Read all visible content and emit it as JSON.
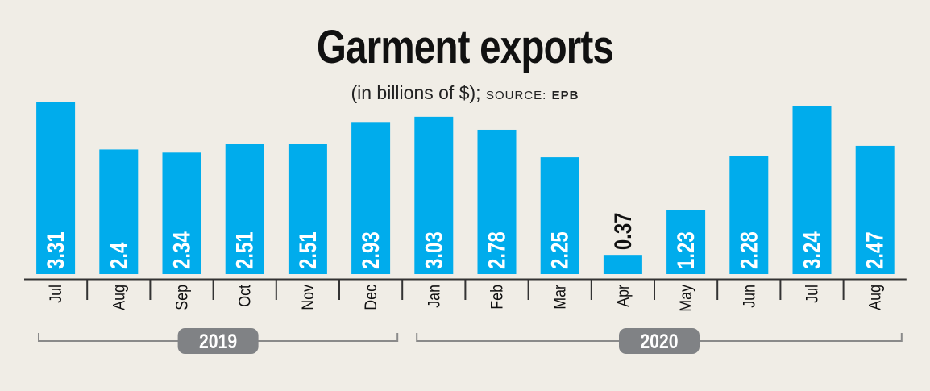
{
  "title": "Garment exports",
  "subtitle": {
    "text": "(in billions of $);",
    "source_label": "SOURCE:",
    "source_name": "EPB"
  },
  "colors": {
    "bar": "#00acec",
    "background": "#f0ede6",
    "axis": "#333333",
    "badge": "#808285",
    "bracket": "#8a8a8a"
  },
  "chart_data": {
    "type": "bar",
    "title": "Garment exports",
    "subtitle": "(in billions of $); SOURCE: EPB",
    "categories": [
      "Jul",
      "Aug",
      "Sep",
      "Oct",
      "Nov",
      "Dec",
      "Jan",
      "Feb",
      "Mar",
      "Apr",
      "May",
      "Jun",
      "Jul",
      "Aug"
    ],
    "values": [
      3.31,
      2.4,
      2.34,
      2.51,
      2.51,
      2.93,
      3.03,
      2.78,
      2.25,
      0.37,
      1.23,
      2.28,
      3.24,
      2.47
    ],
    "data_labels": [
      "3.31",
      "2.4",
      "2.34",
      "2.51",
      "2.51",
      "2.93",
      "3.03",
      "2.78",
      "2.25",
      "0.37",
      "1.23",
      "2.28",
      "3.24",
      "2.47"
    ],
    "year_groups": [
      {
        "label": "2019",
        "start_index": 0,
        "end_index": 5
      },
      {
        "label": "2020",
        "start_index": 6,
        "end_index": 13
      }
    ],
    "xlabel": "",
    "ylabel": "",
    "ylim": [
      0,
      3.4
    ],
    "grid": false,
    "legend": "none"
  }
}
